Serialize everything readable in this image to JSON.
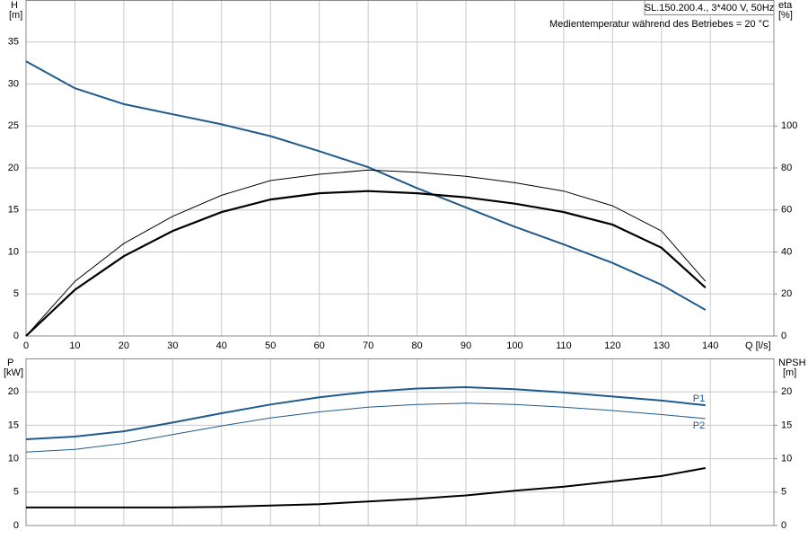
{
  "chart_data": [
    {
      "type": "line",
      "title": "SL.150.200.4., 3*400 V, 50Hz",
      "subtitle": "Medientemperatur während des Betriebes = 20 °C",
      "xlabel": "Q [l/s]",
      "ylabel": "H",
      "ylabel_unit": "[m]",
      "y2label": "eta",
      "y2label_unit": "[%]",
      "x": [
        0,
        10,
        20,
        30,
        40,
        50,
        60,
        70,
        80,
        90,
        100,
        110,
        120,
        130,
        139
      ],
      "xlim": [
        0,
        153
      ],
      "xticks": [
        0,
        10,
        20,
        30,
        40,
        50,
        60,
        70,
        80,
        90,
        100,
        110,
        120,
        130,
        140
      ],
      "ylim": [
        0,
        40
      ],
      "yticks": [
        0,
        5,
        10,
        15,
        20,
        25,
        30,
        35
      ],
      "y2lim": [
        0,
        160
      ],
      "y2ticks": [
        0,
        20,
        40,
        60,
        80,
        100
      ],
      "grid": true,
      "series": [
        {
          "color": "#1f5a8c",
          "width": 2,
          "values": [
            32.7,
            29.5,
            27.6,
            26.4,
            25.2,
            23.8,
            22.0,
            20.1,
            17.6,
            15.3,
            13.0,
            10.9,
            8.7,
            6.1,
            3.1
          ]
        },
        {
          "color": "#000000",
          "width": 2.2,
          "axis": "y2",
          "values": [
            0,
            22,
            38,
            50,
            59,
            65,
            68,
            69,
            68,
            66,
            63,
            59,
            53,
            42,
            23
          ]
        },
        {
          "color": "#000000",
          "width": 1,
          "axis": "y2",
          "values": [
            0,
            26,
            44,
            57,
            67,
            74,
            77,
            79,
            78,
            76,
            73,
            69,
            62,
            50,
            26
          ]
        }
      ]
    },
    {
      "type": "line",
      "ylabel": "P",
      "ylabel_unit": "[kW]",
      "y2label": "NPSH",
      "y2label_unit": "[m]",
      "x": [
        0,
        10,
        20,
        30,
        40,
        50,
        60,
        70,
        80,
        90,
        100,
        110,
        120,
        130,
        139
      ],
      "xlim": [
        0,
        153
      ],
      "ylim": [
        0,
        25
      ],
      "yticks": [
        0,
        5,
        10,
        15,
        20
      ],
      "y2lim": [
        0,
        25
      ],
      "y2ticks": [
        0,
        5,
        10,
        15,
        20
      ],
      "grid": true,
      "series": [
        {
          "name": "P1",
          "color": "#1f5a8c",
          "width": 2,
          "values": [
            12.9,
            13.3,
            14.1,
            15.4,
            16.8,
            18.1,
            19.2,
            20.0,
            20.5,
            20.7,
            20.4,
            19.9,
            19.3,
            18.7,
            18.0
          ]
        },
        {
          "name": "P2",
          "color": "#1f5a8c",
          "width": 1,
          "values": [
            11.0,
            11.4,
            12.3,
            13.6,
            14.9,
            16.1,
            17.0,
            17.7,
            18.1,
            18.3,
            18.1,
            17.7,
            17.2,
            16.6,
            16.0
          ]
        },
        {
          "color": "#000000",
          "width": 2,
          "axis": "y2",
          "values": [
            2.7,
            2.7,
            2.7,
            2.7,
            2.8,
            3.0,
            3.2,
            3.6,
            4.0,
            4.5,
            5.2,
            5.8,
            6.6,
            7.4,
            8.6
          ]
        }
      ]
    }
  ]
}
